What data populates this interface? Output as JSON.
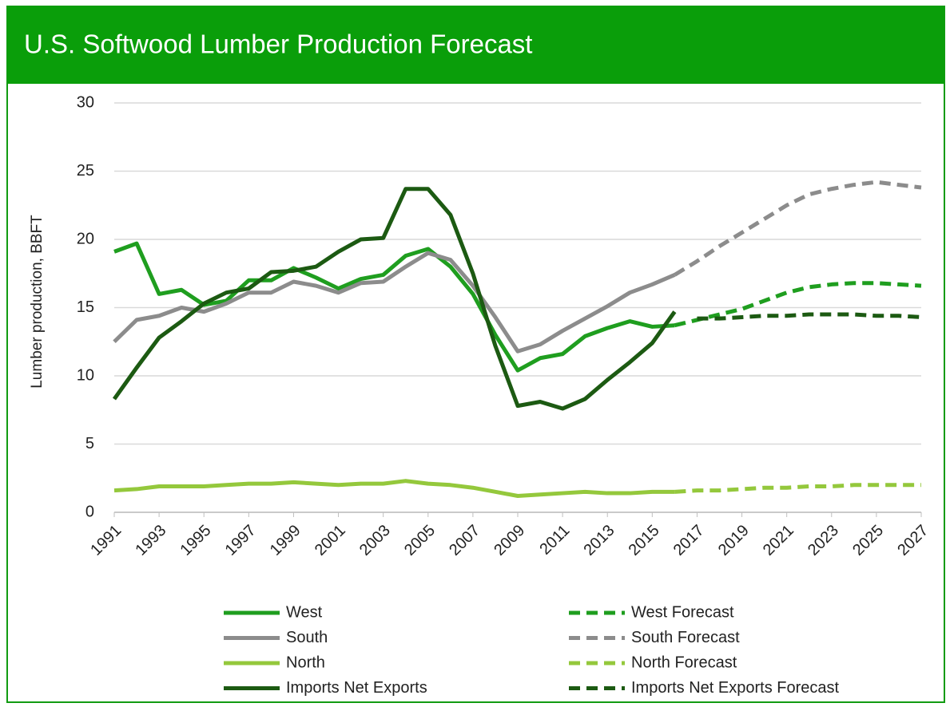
{
  "chart_data": {
    "type": "line",
    "title": "U.S. Softwood Lumber Production Forecast",
    "ylabel": "Lumber production, BBFT",
    "x": [
      1991,
      1992,
      1993,
      1994,
      1995,
      1996,
      1997,
      1998,
      1999,
      2000,
      2001,
      2002,
      2003,
      2004,
      2005,
      2006,
      2007,
      2008,
      2009,
      2010,
      2011,
      2012,
      2013,
      2014,
      2015,
      2016,
      2017,
      2018,
      2019,
      2020,
      2021,
      2022,
      2023,
      2024,
      2025,
      2026,
      2027
    ],
    "xlim": [
      1991,
      2027
    ],
    "xticks": [
      1991,
      1993,
      1995,
      1997,
      1999,
      2001,
      2003,
      2005,
      2007,
      2009,
      2011,
      2013,
      2015,
      2017,
      2019,
      2021,
      2023,
      2025,
      2027
    ],
    "ylim": [
      0,
      30
    ],
    "yticks": [
      0,
      5,
      10,
      15,
      20,
      25,
      30
    ],
    "grid": true,
    "series": [
      {
        "name": "West",
        "color": "#1f9e1f",
        "dash": false,
        "values": [
          19.1,
          19.7,
          16.0,
          16.3,
          15.2,
          15.5,
          17.0,
          17.0,
          17.9,
          17.2,
          16.4,
          17.1,
          17.4,
          18.8,
          19.3,
          18.0,
          16.0,
          13.0,
          10.4,
          11.3,
          11.6,
          12.9,
          13.5,
          14.0,
          13.6,
          13.7,
          null,
          null,
          null,
          null,
          null,
          null,
          null,
          null,
          null,
          null,
          null
        ]
      },
      {
        "name": "South",
        "color": "#8c8c8c",
        "dash": false,
        "values": [
          12.5,
          14.1,
          14.4,
          15.0,
          14.7,
          15.3,
          16.1,
          16.1,
          16.9,
          16.6,
          16.1,
          16.8,
          16.9,
          18.0,
          19.0,
          18.5,
          16.6,
          14.3,
          11.8,
          12.3,
          13.3,
          14.2,
          15.1,
          16.1,
          16.7,
          17.4,
          null,
          null,
          null,
          null,
          null,
          null,
          null,
          null,
          null,
          null,
          null
        ]
      },
      {
        "name": "North",
        "color": "#94c83c",
        "dash": false,
        "values": [
          1.6,
          1.7,
          1.9,
          1.9,
          1.9,
          2.0,
          2.1,
          2.1,
          2.2,
          2.1,
          2.0,
          2.1,
          2.1,
          2.3,
          2.1,
          2.0,
          1.8,
          1.5,
          1.2,
          1.3,
          1.4,
          1.5,
          1.4,
          1.4,
          1.5,
          1.5,
          null,
          null,
          null,
          null,
          null,
          null,
          null,
          null,
          null,
          null,
          null
        ]
      },
      {
        "name": "Imports Net Exports",
        "color": "#1c5a12",
        "dash": false,
        "values": [
          8.3,
          10.6,
          12.8,
          14.0,
          15.3,
          16.1,
          16.4,
          17.6,
          17.7,
          18.0,
          19.1,
          20.0,
          20.1,
          23.7,
          23.7,
          21.8,
          17.5,
          12.2,
          7.8,
          8.1,
          7.6,
          8.3,
          9.7,
          11.0,
          12.4,
          14.7,
          null,
          null,
          null,
          null,
          null,
          null,
          null,
          null,
          null,
          null,
          null
        ]
      },
      {
        "name": "West Forecast",
        "color": "#1f9e1f",
        "dash": true,
        "values": [
          null,
          null,
          null,
          null,
          null,
          null,
          null,
          null,
          null,
          null,
          null,
          null,
          null,
          null,
          null,
          null,
          null,
          null,
          null,
          null,
          null,
          null,
          null,
          null,
          null,
          13.7,
          14.1,
          14.5,
          14.9,
          15.5,
          16.1,
          16.5,
          16.7,
          16.8,
          16.8,
          16.7,
          16.6
        ]
      },
      {
        "name": "South Forecast",
        "color": "#8c8c8c",
        "dash": true,
        "values": [
          null,
          null,
          null,
          null,
          null,
          null,
          null,
          null,
          null,
          null,
          null,
          null,
          null,
          null,
          null,
          null,
          null,
          null,
          null,
          null,
          null,
          null,
          null,
          null,
          null,
          17.4,
          18.4,
          19.5,
          20.5,
          21.5,
          22.5,
          23.3,
          23.7,
          24.0,
          24.2,
          24.0,
          23.8
        ]
      },
      {
        "name": "North Forecast",
        "color": "#94c83c",
        "dash": true,
        "values": [
          null,
          null,
          null,
          null,
          null,
          null,
          null,
          null,
          null,
          null,
          null,
          null,
          null,
          null,
          null,
          null,
          null,
          null,
          null,
          null,
          null,
          null,
          null,
          null,
          null,
          1.5,
          1.6,
          1.6,
          1.7,
          1.8,
          1.8,
          1.9,
          1.9,
          2.0,
          2.0,
          2.0,
          2.0
        ]
      },
      {
        "name": "Imports Net Exports Forecast",
        "color": "#1c5a12",
        "dash": true,
        "values": [
          null,
          null,
          null,
          null,
          null,
          null,
          null,
          null,
          null,
          null,
          null,
          null,
          null,
          null,
          null,
          null,
          null,
          null,
          null,
          null,
          null,
          null,
          null,
          null,
          null,
          null,
          14.2,
          14.2,
          14.3,
          14.4,
          14.4,
          14.5,
          14.5,
          14.5,
          14.4,
          14.4,
          14.3
        ]
      }
    ]
  }
}
